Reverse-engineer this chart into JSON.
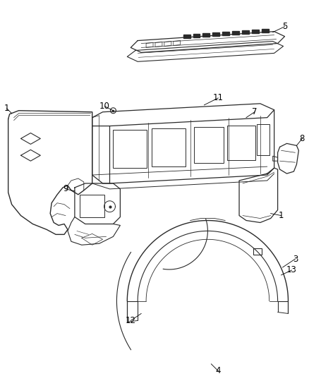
{
  "background_color": "#ffffff",
  "line_color": "#2a2a2a",
  "label_color": "#000000",
  "label_fontsize": 8.5,
  "fig_width": 4.38,
  "fig_height": 5.33
}
